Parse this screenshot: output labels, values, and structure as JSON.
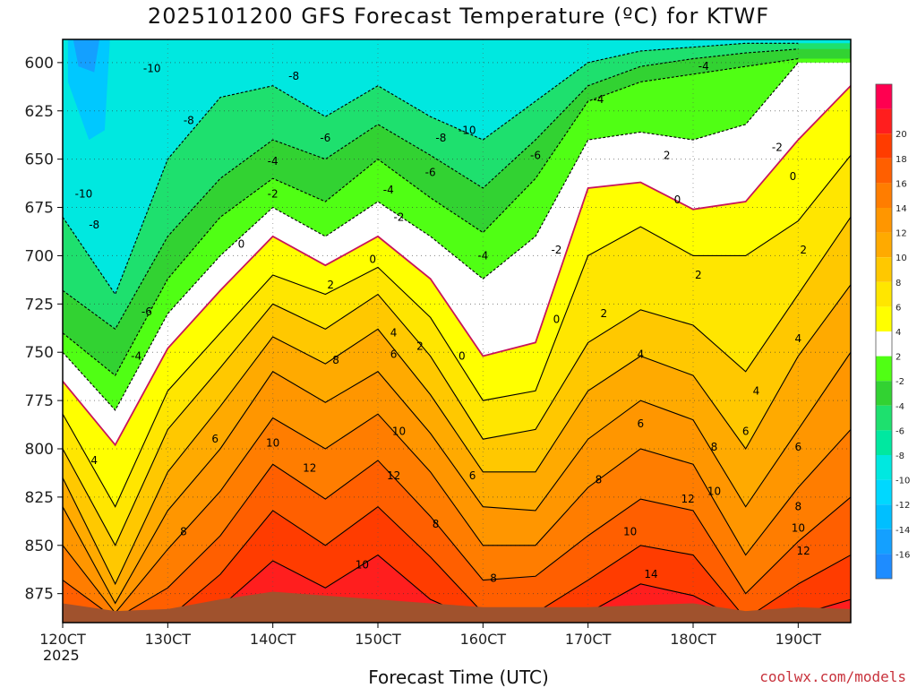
{
  "chart_data": {
    "type": "heatmap",
    "title": "2025101200 GFS Forecast Temperature (ºC) for KTWF",
    "xlabel": "Forecast Time (UTC)",
    "ylabel": "",
    "credit": "coolwx.com/models",
    "year_label": "2025",
    "x_ticks": [
      {
        "value": 12,
        "label": "120CT"
      },
      {
        "value": 13,
        "label": "130CT"
      },
      {
        "value": 14,
        "label": "140CT"
      },
      {
        "value": 15,
        "label": "150CT"
      },
      {
        "value": 16,
        "label": "160CT"
      },
      {
        "value": 17,
        "label": "170CT"
      },
      {
        "value": 18,
        "label": "180CT"
      },
      {
        "value": 19,
        "label": "190CT"
      }
    ],
    "xlim": [
      12,
      19.5
    ],
    "y_ticks": [
      600,
      625,
      650,
      675,
      700,
      725,
      750,
      775,
      800,
      825,
      850,
      875
    ],
    "ylim": [
      588,
      890
    ],
    "colorbar": {
      "levels": [
        {
          "label": "",
          "color": "#1e8cff"
        },
        {
          "label": "-16",
          "color": "#14a0ff"
        },
        {
          "label": "-14",
          "color": "#00bfff"
        },
        {
          "label": "-12",
          "color": "#00d8ff"
        },
        {
          "label": "-10",
          "color": "#00e8e0"
        },
        {
          "label": "-8",
          "color": "#00e8a0"
        },
        {
          "label": "-6",
          "color": "#1ee06e"
        },
        {
          "label": "-4",
          "color": "#32d232"
        },
        {
          "label": "-2",
          "color": "#50ff14"
        },
        {
          "label": "2",
          "color": "#ffffff"
        },
        {
          "label": "4",
          "color": "#ffff00"
        },
        {
          "label": "6",
          "color": "#ffe600"
        },
        {
          "label": "8",
          "color": "#ffc800"
        },
        {
          "label": "10",
          "color": "#ffaa00"
        },
        {
          "label": "12",
          "color": "#ff9600"
        },
        {
          "label": "14",
          "color": "#ff7d00"
        },
        {
          "label": "16",
          "color": "#ff5f00"
        },
        {
          "label": "18",
          "color": "#ff3c00"
        },
        {
          "label": "20",
          "color": "#ff1e1e"
        },
        {
          "label": "",
          "color": "#ff0050"
        }
      ]
    },
    "isotherms": [
      {
        "temp": -10,
        "color": "#00e8e0",
        "points": [
          [
            12.0,
            588
          ],
          [
            12.5,
            588
          ],
          [
            13.0,
            588
          ],
          [
            13.5,
            588
          ],
          [
            14.0,
            588
          ],
          [
            14.5,
            588
          ],
          [
            15.0,
            588
          ],
          [
            15.5,
            588
          ],
          [
            16.0,
            588
          ],
          [
            16.5,
            588
          ],
          [
            17.0,
            588
          ],
          [
            17.5,
            588
          ],
          [
            18.0,
            588
          ],
          [
            18.5,
            588
          ],
          [
            19.0,
            588
          ],
          [
            19.5,
            588
          ],
          [
            19.5,
            588
          ],
          [
            19.0,
            588
          ],
          [
            18.5,
            588
          ],
          [
            18.0,
            588
          ],
          [
            17.5,
            588
          ],
          [
            17.0,
            588
          ],
          [
            16.5,
            588
          ],
          [
            16.0,
            588
          ],
          [
            15.5,
            588
          ],
          [
            15.0,
            588
          ],
          [
            14.5,
            588
          ],
          [
            14.0,
            588
          ],
          [
            13.5,
            588
          ],
          [
            13.0,
            588
          ],
          [
            12.5,
            588
          ],
          [
            12.0,
            588
          ]
        ]
      }
    ],
    "series": [
      {
        "name": "-8 °C isotherm",
        "temp": -8,
        "x": [
          12.0,
          12.5,
          13.0,
          13.5,
          14.0,
          14.5,
          15.0,
          15.5,
          16.0,
          16.5,
          17.0,
          17.5,
          18.0,
          18.5,
          19.0
        ],
        "y": [
          680,
          720,
          650,
          618,
          612,
          628,
          612,
          628,
          640,
          620,
          600,
          594,
          592,
          590,
          590
        ]
      },
      {
        "name": "-6 °C isotherm",
        "temp": -6,
        "x": [
          12.0,
          12.5,
          13.0,
          13.5,
          14.0,
          14.5,
          15.0,
          15.5,
          16.0,
          16.5,
          17.0,
          17.5,
          18.0,
          18.5,
          19.0
        ],
        "y": [
          718,
          738,
          690,
          660,
          640,
          650,
          632,
          648,
          665,
          640,
          612,
          602,
          598,
          595,
          593
        ]
      },
      {
        "name": "-4 °C isotherm",
        "temp": -4,
        "x": [
          12.0,
          12.5,
          13.0,
          13.5,
          14.0,
          14.5,
          15.0,
          15.5,
          16.0,
          16.5,
          17.0,
          17.5,
          18.0,
          18.5,
          19.0
        ],
        "y": [
          740,
          762,
          712,
          680,
          660,
          672,
          650,
          670,
          688,
          660,
          620,
          610,
          606,
          602,
          598
        ]
      },
      {
        "name": "-2 °C isotherm",
        "temp": -2,
        "x": [
          12.0,
          12.5,
          13.0,
          13.5,
          14.0,
          14.5,
          15.0,
          15.5,
          16.0,
          16.5,
          17.0,
          17.5,
          18.0,
          18.5,
          19.0
        ],
        "y": [
          750,
          780,
          730,
          700,
          675,
          690,
          672,
          690,
          712,
          690,
          640,
          636,
          640,
          632,
          600
        ]
      },
      {
        "name": "0 °C isotherm",
        "temp": 0,
        "x": [
          12.0,
          12.5,
          13.0,
          13.5,
          14.0,
          14.5,
          15.0,
          15.5,
          16.0,
          16.5,
          17.0,
          17.5,
          18.0,
          18.5,
          19.0,
          19.5
        ],
        "y": [
          765,
          798,
          748,
          718,
          690,
          705,
          690,
          712,
          752,
          745,
          665,
          662,
          676,
          672,
          640,
          612
        ]
      },
      {
        "name": "2 °C isotherm",
        "temp": 2,
        "x": [
          12.0,
          12.5,
          13.0,
          13.5,
          14.0,
          14.5,
          15.0,
          15.5,
          16.0,
          16.5,
          17.0,
          17.5,
          18.0,
          18.5,
          19.0,
          19.5
        ],
        "y": [
          782,
          830,
          770,
          740,
          710,
          720,
          706,
          732,
          775,
          770,
          700,
          685,
          700,
          700,
          682,
          648
        ]
      },
      {
        "name": "4 °C isotherm",
        "temp": 4,
        "x": [
          12.0,
          12.5,
          13.0,
          13.5,
          14.0,
          14.5,
          15.0,
          15.5,
          16.0,
          16.5,
          17.0,
          17.5,
          18.0,
          18.5,
          19.0,
          19.5
        ],
        "y": [
          800,
          850,
          790,
          758,
          725,
          738,
          720,
          752,
          795,
          790,
          745,
          728,
          736,
          760,
          720,
          680
        ]
      },
      {
        "name": "6 °C isotherm",
        "temp": 6,
        "x": [
          12.0,
          12.5,
          13.0,
          13.5,
          14.0,
          14.5,
          15.0,
          15.5,
          16.0,
          16.5,
          17.0,
          17.5,
          18.0,
          18.5,
          19.0,
          19.5
        ],
        "y": [
          815,
          870,
          812,
          778,
          742,
          756,
          738,
          772,
          812,
          812,
          770,
          752,
          762,
          800,
          752,
          715
        ]
      },
      {
        "name": "8 °C isotherm",
        "temp": 8,
        "x": [
          12.0,
          12.5,
          13.0,
          13.5,
          14.0,
          14.5,
          15.0,
          15.5,
          16.0,
          16.5,
          17.0,
          17.5,
          18.0,
          18.5,
          19.0,
          19.5
        ],
        "y": [
          830,
          880,
          832,
          800,
          760,
          776,
          760,
          792,
          830,
          832,
          795,
          775,
          785,
          830,
          790,
          750
        ]
      },
      {
        "name": "10 °C isotherm",
        "temp": 10,
        "x": [
          12.0,
          12.5,
          13.0,
          13.5,
          14.0,
          14.5,
          15.0,
          15.5,
          16.0,
          16.5,
          17.0,
          17.5,
          18.0,
          18.5,
          19.0,
          19.5
        ],
        "y": [
          850,
          885,
          852,
          822,
          784,
          800,
          782,
          812,
          850,
          850,
          820,
          800,
          808,
          855,
          820,
          790
        ]
      },
      {
        "name": "12 °C isotherm",
        "temp": 12,
        "x": [
          12.0,
          12.5,
          13.0,
          13.5,
          14.0,
          14.5,
          15.0,
          15.5,
          16.0,
          16.5,
          17.0,
          17.5,
          18.0,
          18.5,
          19.0,
          19.5
        ],
        "y": [
          868,
          888,
          872,
          845,
          808,
          826,
          806,
          835,
          868,
          866,
          845,
          826,
          832,
          875,
          848,
          825
        ]
      },
      {
        "name": "14 °C isotherm",
        "temp": 14,
        "x": [
          12.0,
          12.5,
          13.0,
          13.5,
          14.0,
          14.5,
          15.0,
          15.5,
          16.0,
          16.5,
          17.0,
          17.5,
          18.0,
          18.5,
          19.0,
          19.5
        ],
        "y": [
          885,
          890,
          888,
          865,
          832,
          850,
          830,
          856,
          885,
          885,
          868,
          850,
          855,
          888,
          870,
          855
        ]
      },
      {
        "name": "16 °C isotherm",
        "temp": 16,
        "x": [
          12.0,
          12.5,
          13.0,
          13.5,
          14.0,
          14.5,
          15.0,
          15.5,
          16.0,
          16.5,
          17.0,
          17.5,
          18.0,
          18.5,
          19.0,
          19.5
        ],
        "y": [
          890,
          890,
          890,
          882,
          858,
          872,
          855,
          878,
          890,
          890,
          885,
          870,
          876,
          890,
          886,
          878
        ]
      }
    ],
    "contour_labels": [
      {
        "text": "-10",
        "x": 12.85,
        "y": 603
      },
      {
        "text": "-8",
        "x": 13.2,
        "y": 630
      },
      {
        "text": "-8",
        "x": 14.2,
        "y": 607
      },
      {
        "text": "-6",
        "x": 14.5,
        "y": 639
      },
      {
        "text": "-8",
        "x": 15.6,
        "y": 639
      },
      {
        "text": "-10",
        "x": 15.85,
        "y": 635
      },
      {
        "text": "-6",
        "x": 15.5,
        "y": 657
      },
      {
        "text": "-6",
        "x": 16.5,
        "y": 648
      },
      {
        "text": "-4",
        "x": 18.1,
        "y": 602
      },
      {
        "text": "-4",
        "x": 17.1,
        "y": 619
      },
      {
        "text": "-2",
        "x": 18.8,
        "y": 644
      },
      {
        "text": "2",
        "x": 17.75,
        "y": 648
      },
      {
        "text": "-4",
        "x": 14.0,
        "y": 651
      },
      {
        "text": "-2",
        "x": 14.0,
        "y": 668
      },
      {
        "text": "-4",
        "x": 15.1,
        "y": 666
      },
      {
        "text": "-2",
        "x": 15.2,
        "y": 680
      },
      {
        "text": "-4",
        "x": 16.0,
        "y": 700
      },
      {
        "text": "-2",
        "x": 16.7,
        "y": 697
      },
      {
        "text": "0",
        "x": 17.85,
        "y": 671
      },
      {
        "text": "0",
        "x": 18.95,
        "y": 659
      },
      {
        "text": "2",
        "x": 19.05,
        "y": 697
      },
      {
        "text": "2",
        "x": 18.05,
        "y": 710
      },
      {
        "text": "-10",
        "x": 12.2,
        "y": 668
      },
      {
        "text": "-8",
        "x": 12.3,
        "y": 684
      },
      {
        "text": "-6",
        "x": 12.8,
        "y": 729
      },
      {
        "text": "-4",
        "x": 12.7,
        "y": 752
      },
      {
        "text": "0",
        "x": 13.7,
        "y": 694
      },
      {
        "text": "0",
        "x": 14.95,
        "y": 702
      },
      {
        "text": "2",
        "x": 14.55,
        "y": 715
      },
      {
        "text": "4",
        "x": 15.15,
        "y": 740
      },
      {
        "text": "6",
        "x": 15.15,
        "y": 751
      },
      {
        "text": "2",
        "x": 15.4,
        "y": 747
      },
      {
        "text": "0",
        "x": 15.8,
        "y": 752
      },
      {
        "text": "0",
        "x": 16.7,
        "y": 733
      },
      {
        "text": "2",
        "x": 17.15,
        "y": 730
      },
      {
        "text": "4",
        "x": 17.5,
        "y": 751
      },
      {
        "text": "6",
        "x": 17.5,
        "y": 787
      },
      {
        "text": "4",
        "x": 19.0,
        "y": 743
      },
      {
        "text": "4",
        "x": 18.6,
        "y": 770
      },
      {
        "text": "6",
        "x": 18.5,
        "y": 791
      },
      {
        "text": "6",
        "x": 19.0,
        "y": 799
      },
      {
        "text": "8",
        "x": 19.0,
        "y": 830
      },
      {
        "text": "10",
        "x": 19.0,
        "y": 841
      },
      {
        "text": "12",
        "x": 19.05,
        "y": 853
      },
      {
        "text": "8",
        "x": 18.2,
        "y": 799
      },
      {
        "text": "10",
        "x": 18.2,
        "y": 822
      },
      {
        "text": "12",
        "x": 17.95,
        "y": 826
      },
      {
        "text": "14",
        "x": 17.6,
        "y": 865
      },
      {
        "text": "10",
        "x": 17.4,
        "y": 843
      },
      {
        "text": "8",
        "x": 17.1,
        "y": 816
      },
      {
        "text": "4",
        "x": 12.3,
        "y": 806
      },
      {
        "text": "6",
        "x": 13.45,
        "y": 795
      },
      {
        "text": "8",
        "x": 13.15,
        "y": 843
      },
      {
        "text": "10",
        "x": 14.0,
        "y": 797
      },
      {
        "text": "12",
        "x": 14.35,
        "y": 810
      },
      {
        "text": "8",
        "x": 14.6,
        "y": 754
      },
      {
        "text": "10",
        "x": 15.2,
        "y": 791
      },
      {
        "text": "12",
        "x": 15.15,
        "y": 814
      },
      {
        "text": "8",
        "x": 15.55,
        "y": 839
      },
      {
        "text": "6",
        "x": 15.9,
        "y": 814
      },
      {
        "text": "10",
        "x": 14.85,
        "y": 860
      },
      {
        "text": "8",
        "x": 16.1,
        "y": 867
      }
    ]
  }
}
